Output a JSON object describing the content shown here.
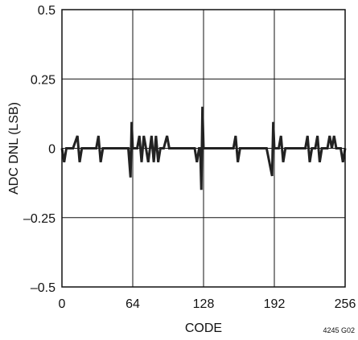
{
  "chart_data": {
    "type": "line",
    "title": "",
    "xlabel": "CODE",
    "ylabel": "ADC DNL (LSB)",
    "xlim": [
      0,
      256
    ],
    "ylim": [
      -0.5,
      0.5
    ],
    "x_ticks": [
      0,
      64,
      128,
      192,
      256
    ],
    "x_tick_labels": [
      "0",
      "64",
      "128",
      "192",
      "256"
    ],
    "y_ticks": [
      0.5,
      0.25,
      0,
      -0.25,
      -0.5
    ],
    "y_tick_labels": [
      "0.5",
      "0.25",
      "0",
      "–0.25",
      "–0.5"
    ],
    "grid": true,
    "note": "4245 G02",
    "series": [
      {
        "color": "#222222",
        "points": [
          [
            0,
            0
          ],
          [
            2,
            -0.05
          ],
          [
            4,
            0
          ],
          [
            6,
            0
          ],
          [
            8,
            0
          ],
          [
            10,
            0
          ],
          [
            14,
            0.045
          ],
          [
            16,
            -0.05
          ],
          [
            18,
            0
          ],
          [
            24,
            0
          ],
          [
            31,
            0
          ],
          [
            33,
            0.045
          ],
          [
            35,
            -0.05
          ],
          [
            37,
            0
          ],
          [
            50,
            0
          ],
          [
            55,
            0
          ],
          [
            60,
            0
          ],
          [
            62,
            -0.105
          ],
          [
            63,
            0.095
          ],
          [
            64,
            0
          ],
          [
            66,
            0
          ],
          [
            68,
            0
          ],
          [
            70,
            0.045
          ],
          [
            72,
            -0.05
          ],
          [
            74,
            0.045
          ],
          [
            76,
            0
          ],
          [
            78,
            -0.05
          ],
          [
            81,
            0.045
          ],
          [
            83,
            -0.05
          ],
          [
            85,
            0.045
          ],
          [
            87,
            -0.05
          ],
          [
            89,
            0
          ],
          [
            92,
            0
          ],
          [
            95,
            0.045
          ],
          [
            97,
            0
          ],
          [
            110,
            0
          ],
          [
            120,
            0
          ],
          [
            122,
            -0.05
          ],
          [
            124,
            0
          ],
          [
            125,
            0
          ],
          [
            126,
            -0.15
          ],
          [
            127,
            0.15
          ],
          [
            128,
            0
          ],
          [
            130,
            0
          ],
          [
            150,
            0
          ],
          [
            155,
            0
          ],
          [
            157,
            0.045
          ],
          [
            159,
            -0.05
          ],
          [
            161,
            0
          ],
          [
            185,
            0
          ],
          [
            190,
            -0.1
          ],
          [
            191,
            0.095
          ],
          [
            192,
            0
          ],
          [
            196,
            0
          ],
          [
            198,
            0.045
          ],
          [
            200,
            -0.05
          ],
          [
            202,
            0
          ],
          [
            210,
            0
          ],
          [
            220,
            0
          ],
          [
            222,
            0.045
          ],
          [
            224,
            -0.05
          ],
          [
            226,
            0
          ],
          [
            229,
            0
          ],
          [
            231,
            0.045
          ],
          [
            233,
            -0.05
          ],
          [
            235,
            0
          ],
          [
            240,
            0
          ],
          [
            242,
            0.045
          ],
          [
            244,
            0
          ],
          [
            246,
            0.045
          ],
          [
            248,
            0
          ],
          [
            252,
            0
          ],
          [
            254,
            -0.05
          ],
          [
            256,
            0
          ]
        ]
      }
    ]
  }
}
